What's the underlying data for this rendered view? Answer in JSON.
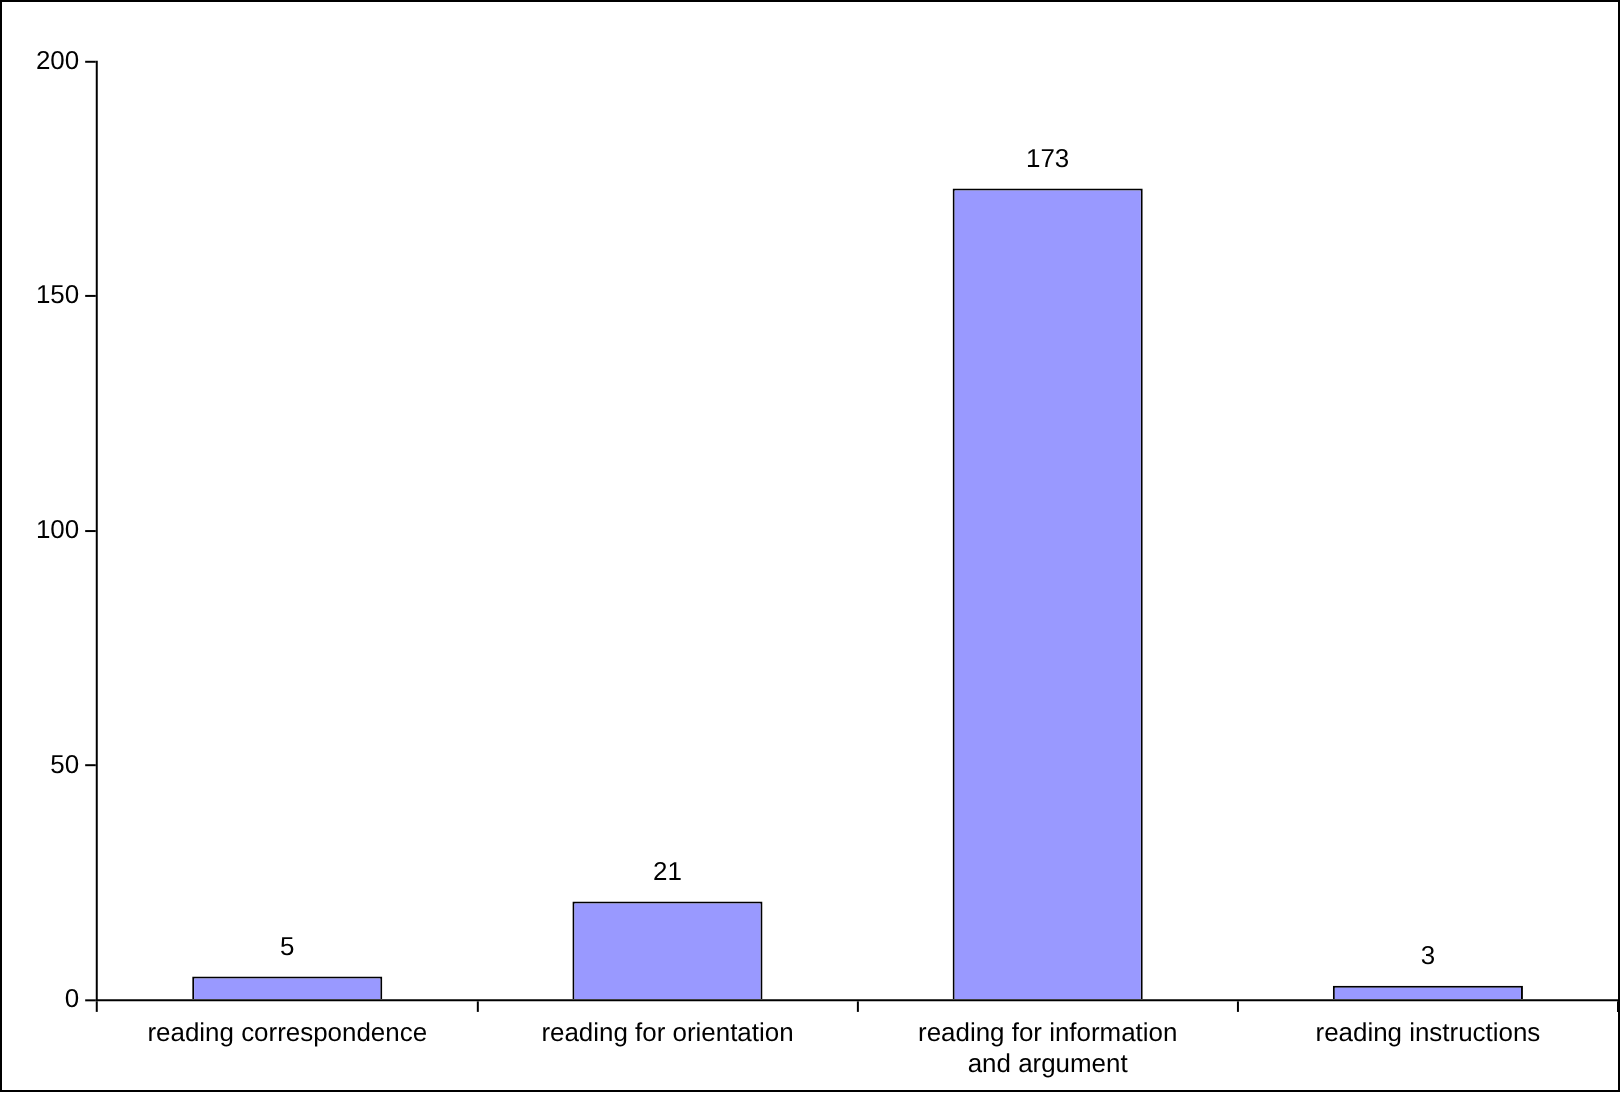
{
  "chart_data": {
    "type": "bar",
    "categories": [
      "reading correspondence",
      "reading for orientation",
      "reading for information and argument",
      "reading instructions"
    ],
    "values": [
      5,
      21,
      173,
      3
    ],
    "color": "#9999ff",
    "ylim": [
      0,
      200
    ],
    "yticks": [
      0,
      50,
      100,
      150,
      200
    ],
    "grid": false,
    "legend": false,
    "data_labels": true
  }
}
